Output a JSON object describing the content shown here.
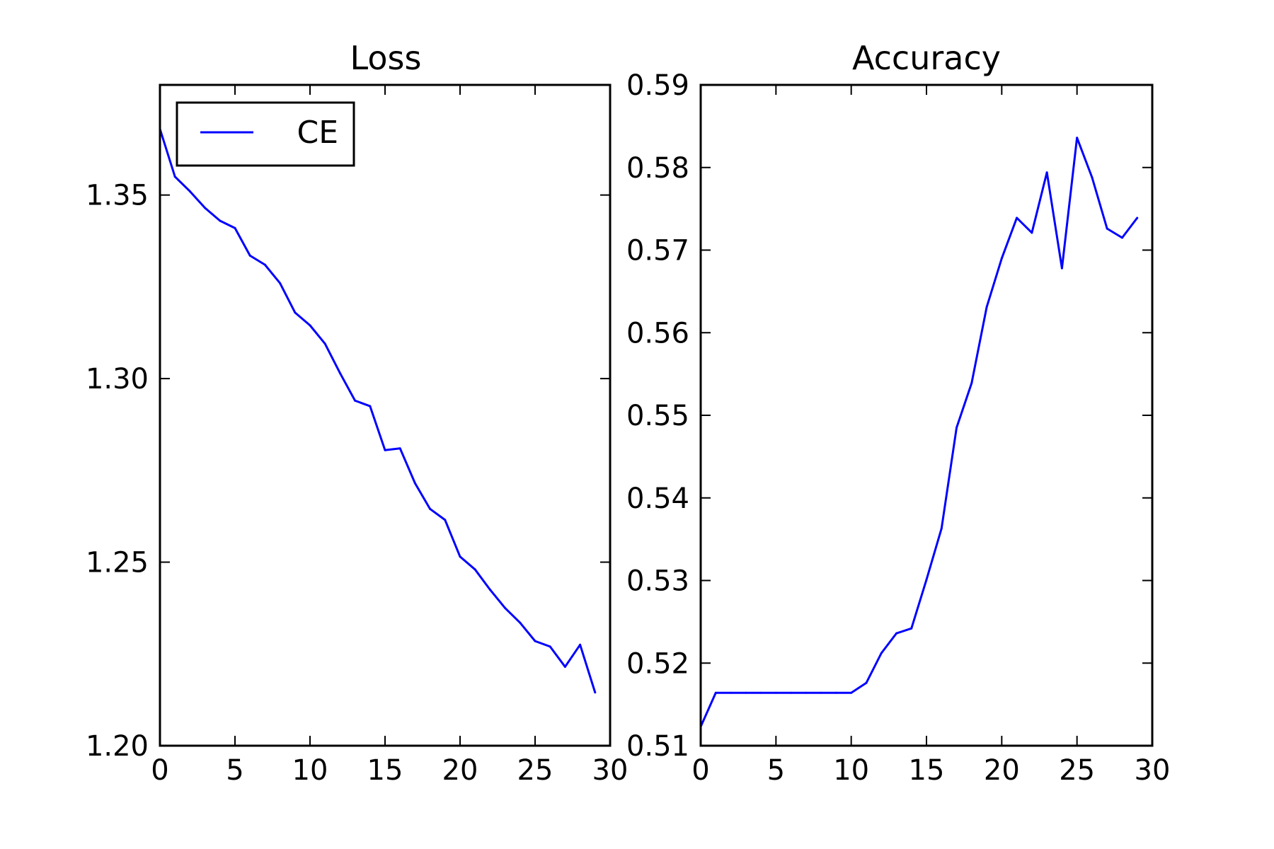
{
  "chart_data": [
    {
      "type": "line",
      "title": "Loss",
      "xlabel": "",
      "ylabel": "",
      "xlim": [
        0,
        30
      ],
      "ylim": [
        1.2,
        1.38
      ],
      "xticks": [
        "0",
        "5",
        "10",
        "15",
        "20",
        "25",
        "30"
      ],
      "yticks": [
        "1.20",
        "1.25",
        "1.30",
        "1.35"
      ],
      "legend": "top-left",
      "grid": false,
      "series": [
        {
          "name": "CE",
          "color": "#0000ff",
          "x": [
            0,
            1,
            2,
            3,
            4,
            5,
            6,
            7,
            8,
            9,
            10,
            11,
            12,
            13,
            14,
            15,
            16,
            17,
            18,
            19,
            20,
            21,
            22,
            23,
            24,
            25,
            26,
            27,
            28,
            29
          ],
          "values": [
            1.368,
            1.355,
            1.351,
            1.3465,
            1.343,
            1.341,
            1.3335,
            1.331,
            1.326,
            1.318,
            1.3145,
            1.3095,
            1.3015,
            1.294,
            1.2925,
            1.2805,
            1.281,
            1.2715,
            1.2645,
            1.2615,
            1.2515,
            1.248,
            1.2425,
            1.2375,
            1.2335,
            1.2285,
            1.227,
            1.2215,
            1.2275,
            1.2145
          ]
        }
      ]
    },
    {
      "type": "line",
      "title": "Accuracy",
      "xlabel": "",
      "ylabel": "",
      "xlim": [
        0,
        30
      ],
      "ylim": [
        0.51,
        0.59
      ],
      "xticks": [
        "0",
        "5",
        "10",
        "15",
        "20",
        "25",
        "30"
      ],
      "yticks": [
        "0.51",
        "0.52",
        "0.53",
        "0.54",
        "0.55",
        "0.56",
        "0.57",
        "0.58",
        "0.59"
      ],
      "grid": false,
      "series": [
        {
          "color": "#0000ff",
          "x": [
            0,
            1,
            2,
            3,
            4,
            5,
            6,
            7,
            8,
            9,
            10,
            11,
            12,
            13,
            14,
            15,
            16,
            17,
            18,
            19,
            20,
            21,
            22,
            23,
            24,
            25,
            26,
            27,
            28,
            29
          ],
          "values": [
            0.5123,
            0.5164,
            0.5164,
            0.5164,
            0.5164,
            0.5164,
            0.5164,
            0.5164,
            0.5164,
            0.5164,
            0.5164,
            0.5176,
            0.5212,
            0.5236,
            0.5242,
            0.5301,
            0.5363,
            0.5485,
            0.5539,
            0.5631,
            0.569,
            0.5739,
            0.5721,
            0.5794,
            0.5678,
            0.5836,
            0.5788,
            0.5726,
            0.5715,
            0.5739
          ]
        }
      ]
    }
  ]
}
